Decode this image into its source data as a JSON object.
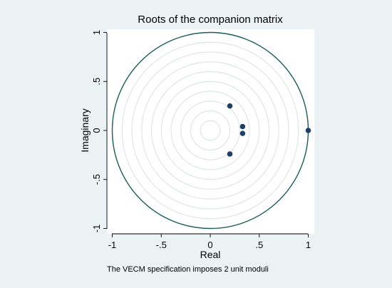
{
  "chart_data": {
    "type": "scatter",
    "title": "Roots of the companion matrix",
    "xlabel": "Real",
    "ylabel": "Imaginary",
    "note": "The VECM specification imposes 2 unit moduli",
    "xlim": [
      -1,
      1
    ],
    "ylim": [
      -1,
      1
    ],
    "x_ticks": [
      -1,
      -0.5,
      0,
      0.5,
      1
    ],
    "x_tick_labels": [
      "-1",
      "-.5",
      "0",
      ".5",
      "1"
    ],
    "y_ticks": [
      -1,
      -0.5,
      0,
      0.5,
      1
    ],
    "y_tick_labels": [
      "-1",
      "-.5",
      "0",
      ".5",
      "1"
    ],
    "grid": false,
    "unit_circle": true,
    "reference_circle_radii": [
      0.1,
      0.2,
      0.3,
      0.4,
      0.5,
      0.6,
      0.7,
      0.8,
      0.9
    ],
    "points": [
      {
        "x": 0.2,
        "y": 0.25
      },
      {
        "x": 0.33,
        "y": 0.04
      },
      {
        "x": 0.33,
        "y": -0.03
      },
      {
        "x": 0.2,
        "y": -0.24
      },
      {
        "x": 1.0,
        "y": 0.0
      }
    ],
    "colors": {
      "background": "#eaf2f3",
      "plot": "#ffffff",
      "circle": "#1a5e57",
      "inner_circles": "#dfe6e7",
      "marker": "#1f3f6b"
    }
  }
}
